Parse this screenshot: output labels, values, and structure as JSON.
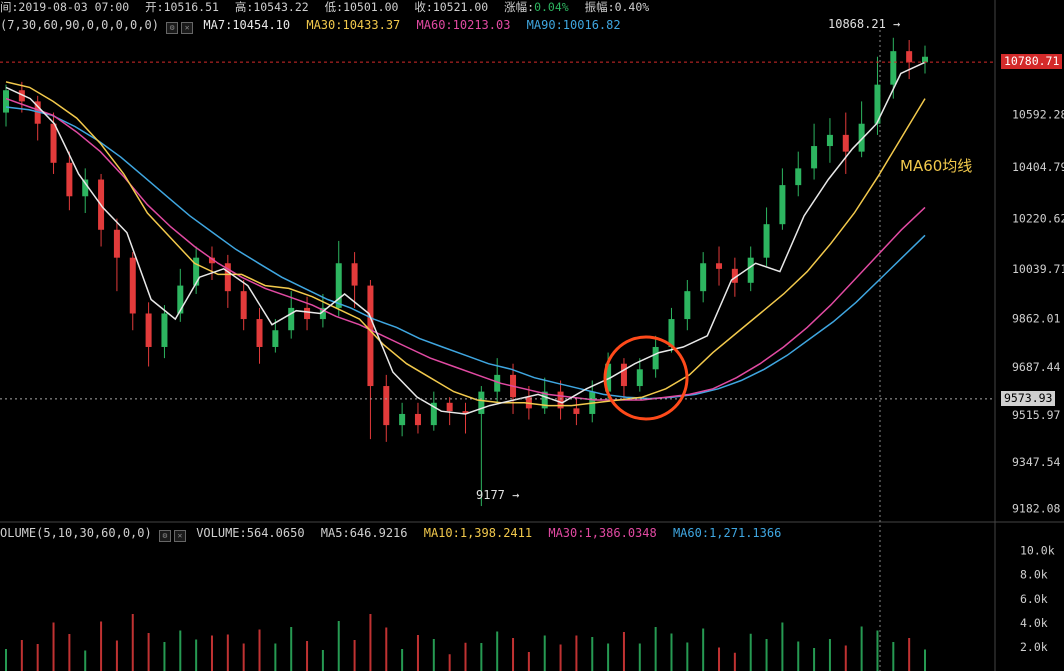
{
  "header": {
    "time_label": "间:2019-08-03 07:00",
    "open_label": "开:10516.51",
    "high_label": "高:10543.22",
    "low_label": "低:10501.00",
    "close_label": "收:10521.00",
    "change_label": "涨幅:",
    "change_value": "0.04%",
    "amplitude_label": "振幅:0.40%"
  },
  "ma_row": {
    "params": "(7,30,60,90,0,0,0,0,0)",
    "ma7": "MA7:10454.10",
    "ma30": "MA30:10433.37",
    "ma60": "MA60:10213.03",
    "ma90": "MA90:10016.82"
  },
  "volume_row": {
    "params": "OLUME(5,10,30,60,0,0)",
    "volume": "VOLUME:564.0650",
    "ma5": "MA5:646.9216",
    "ma10": "MA10:1,398.2411",
    "ma30": "MA30:1,386.0348",
    "ma60": "MA60:1,271.1366"
  },
  "price_tags": {
    "last": "10780.71",
    "crosshair": "9573.93"
  },
  "annotation": "MA60均线",
  "extremes": {
    "high": "10868.21",
    "low": "9177"
  },
  "colors": {
    "up": "#2db560",
    "down": "#e23b3b",
    "ma7": "#e8e8e8",
    "ma30": "#f2c94c",
    "ma60": "#e14aa2",
    "ma90": "#3fa6e0",
    "highlight": "#ff4a1a"
  },
  "chart_data": {
    "type": "candlestick",
    "price_axis": {
      "ticks": [
        "10592.28",
        "10404.79",
        "10220.62",
        "10039.71",
        "9862.01",
        "9687.44",
        "9515.97",
        "9347.54",
        "9182.08"
      ],
      "range": [
        9140,
        10860
      ]
    },
    "volume_axis": {
      "ticks": [
        "10.0k",
        "8.0k",
        "6.0k",
        "4.0k",
        "2.0k"
      ]
    },
    "ma7_path": [
      10690,
      10650,
      10560,
      10380,
      10260,
      10170,
      9930,
      9860,
      10010,
      10040,
      9980,
      9840,
      9890,
      9880,
      9950,
      9880,
      9670,
      9580,
      9530,
      9520,
      9550,
      9570,
      9590,
      9560,
      9610,
      9650,
      9700,
      9740,
      9760,
      9800,
      10000,
      10060,
      10030,
      10230,
      10360,
      10470,
      10560,
      10740,
      10780
    ],
    "ma30_path": [
      10710,
      10690,
      10640,
      10580,
      10490,
      10380,
      10240,
      10150,
      10060,
      10020,
      10020,
      9980,
      9970,
      9940,
      9900,
      9860,
      9770,
      9700,
      9650,
      9600,
      9570,
      9560,
      9560,
      9550,
      9550,
      9560,
      9570,
      9580,
      9610,
      9660,
      9740,
      9810,
      9880,
      9950,
      10030,
      10130,
      10240,
      10370,
      10510,
      10650
    ],
    "ma60_path": [
      10650,
      10620,
      10590,
      10530,
      10460,
      10370,
      10270,
      10190,
      10120,
      10060,
      10010,
      9970,
      9940,
      9910,
      9870,
      9840,
      9800,
      9760,
      9720,
      9690,
      9660,
      9630,
      9610,
      9590,
      9580,
      9570,
      9570,
      9570,
      9580,
      9590,
      9610,
      9650,
      9700,
      9760,
      9830,
      9910,
      10000,
      10090,
      10180,
      10260
    ],
    "ma90_path": [
      10620,
      10610,
      10590,
      10550,
      10500,
      10440,
      10370,
      10300,
      10230,
      10170,
      10110,
      10060,
      10010,
      9970,
      9930,
      9900,
      9860,
      9830,
      9790,
      9760,
      9730,
      9700,
      9680,
      9650,
      9630,
      9610,
      9590,
      9580,
      9575,
      9580,
      9590,
      9610,
      9640,
      9680,
      9730,
      9790,
      9850,
      9920,
      10000,
      10080,
      10160
    ],
    "candles": [
      [
        10600,
        10680,
        10550,
        10700
      ],
      [
        10680,
        10640,
        10600,
        10710
      ],
      [
        10640,
        10560,
        10500,
        10660
      ],
      [
        10560,
        10420,
        10380,
        10600
      ],
      [
        10420,
        10300,
        10250,
        10460
      ],
      [
        10300,
        10360,
        10240,
        10400
      ],
      [
        10360,
        10180,
        10120,
        10380
      ],
      [
        10180,
        10080,
        9960,
        10220
      ],
      [
        10080,
        9880,
        9820,
        10100
      ],
      [
        9880,
        9760,
        9690,
        9920
      ],
      [
        9760,
        9880,
        9720,
        9910
      ],
      [
        9880,
        9980,
        9850,
        10040
      ],
      [
        9980,
        10080,
        9950,
        10120
      ],
      [
        10080,
        10060,
        10000,
        10120
      ],
      [
        10060,
        9960,
        9900,
        10090
      ],
      [
        9960,
        9860,
        9820,
        10000
      ],
      [
        9860,
        9760,
        9700,
        9900
      ],
      [
        9760,
        9820,
        9740,
        9860
      ],
      [
        9820,
        9900,
        9790,
        9960
      ],
      [
        9900,
        9860,
        9820,
        9940
      ],
      [
        9860,
        9900,
        9830,
        9950
      ],
      [
        9900,
        10060,
        9870,
        10140
      ],
      [
        10060,
        9980,
        9900,
        10100
      ],
      [
        9980,
        9620,
        9430,
        10000
      ],
      [
        9620,
        9480,
        9420,
        9660
      ],
      [
        9480,
        9520,
        9440,
        9560
      ],
      [
        9520,
        9480,
        9450,
        9560
      ],
      [
        9480,
        9560,
        9460,
        9600
      ],
      [
        9560,
        9530,
        9480,
        9580
      ],
      [
        9530,
        9520,
        9450,
        9560
      ],
      [
        9520,
        9600,
        9190,
        9620
      ],
      [
        9600,
        9660,
        9560,
        9720
      ],
      [
        9660,
        9580,
        9520,
        9700
      ],
      [
        9580,
        9540,
        9500,
        9620
      ],
      [
        9540,
        9600,
        9520,
        9650
      ],
      [
        9600,
        9540,
        9500,
        9640
      ],
      [
        9540,
        9520,
        9480,
        9580
      ],
      [
        9520,
        9600,
        9490,
        9640
      ],
      [
        9600,
        9700,
        9570,
        9740
      ],
      [
        9700,
        9620,
        9570,
        9720
      ],
      [
        9620,
        9680,
        9600,
        9720
      ],
      [
        9680,
        9760,
        9650,
        9800
      ],
      [
        9760,
        9860,
        9740,
        9900
      ],
      [
        9860,
        9960,
        9820,
        10000
      ],
      [
        9960,
        10060,
        9920,
        10100
      ],
      [
        10060,
        10040,
        9980,
        10120
      ],
      [
        10040,
        9990,
        9940,
        10080
      ],
      [
        9990,
        10080,
        9960,
        10120
      ],
      [
        10080,
        10200,
        10050,
        10260
      ],
      [
        10200,
        10340,
        10180,
        10400
      ],
      [
        10340,
        10400,
        10300,
        10460
      ],
      [
        10400,
        10480,
        10360,
        10560
      ],
      [
        10480,
        10520,
        10420,
        10580
      ],
      [
        10520,
        10460,
        10380,
        10600
      ],
      [
        10460,
        10560,
        10440,
        10640
      ],
      [
        10560,
        10700,
        10520,
        10800
      ],
      [
        10700,
        10820,
        10650,
        10868
      ],
      [
        10820,
        10780,
        10720,
        10860
      ],
      [
        10780,
        10800,
        10740,
        10840
      ]
    ]
  }
}
